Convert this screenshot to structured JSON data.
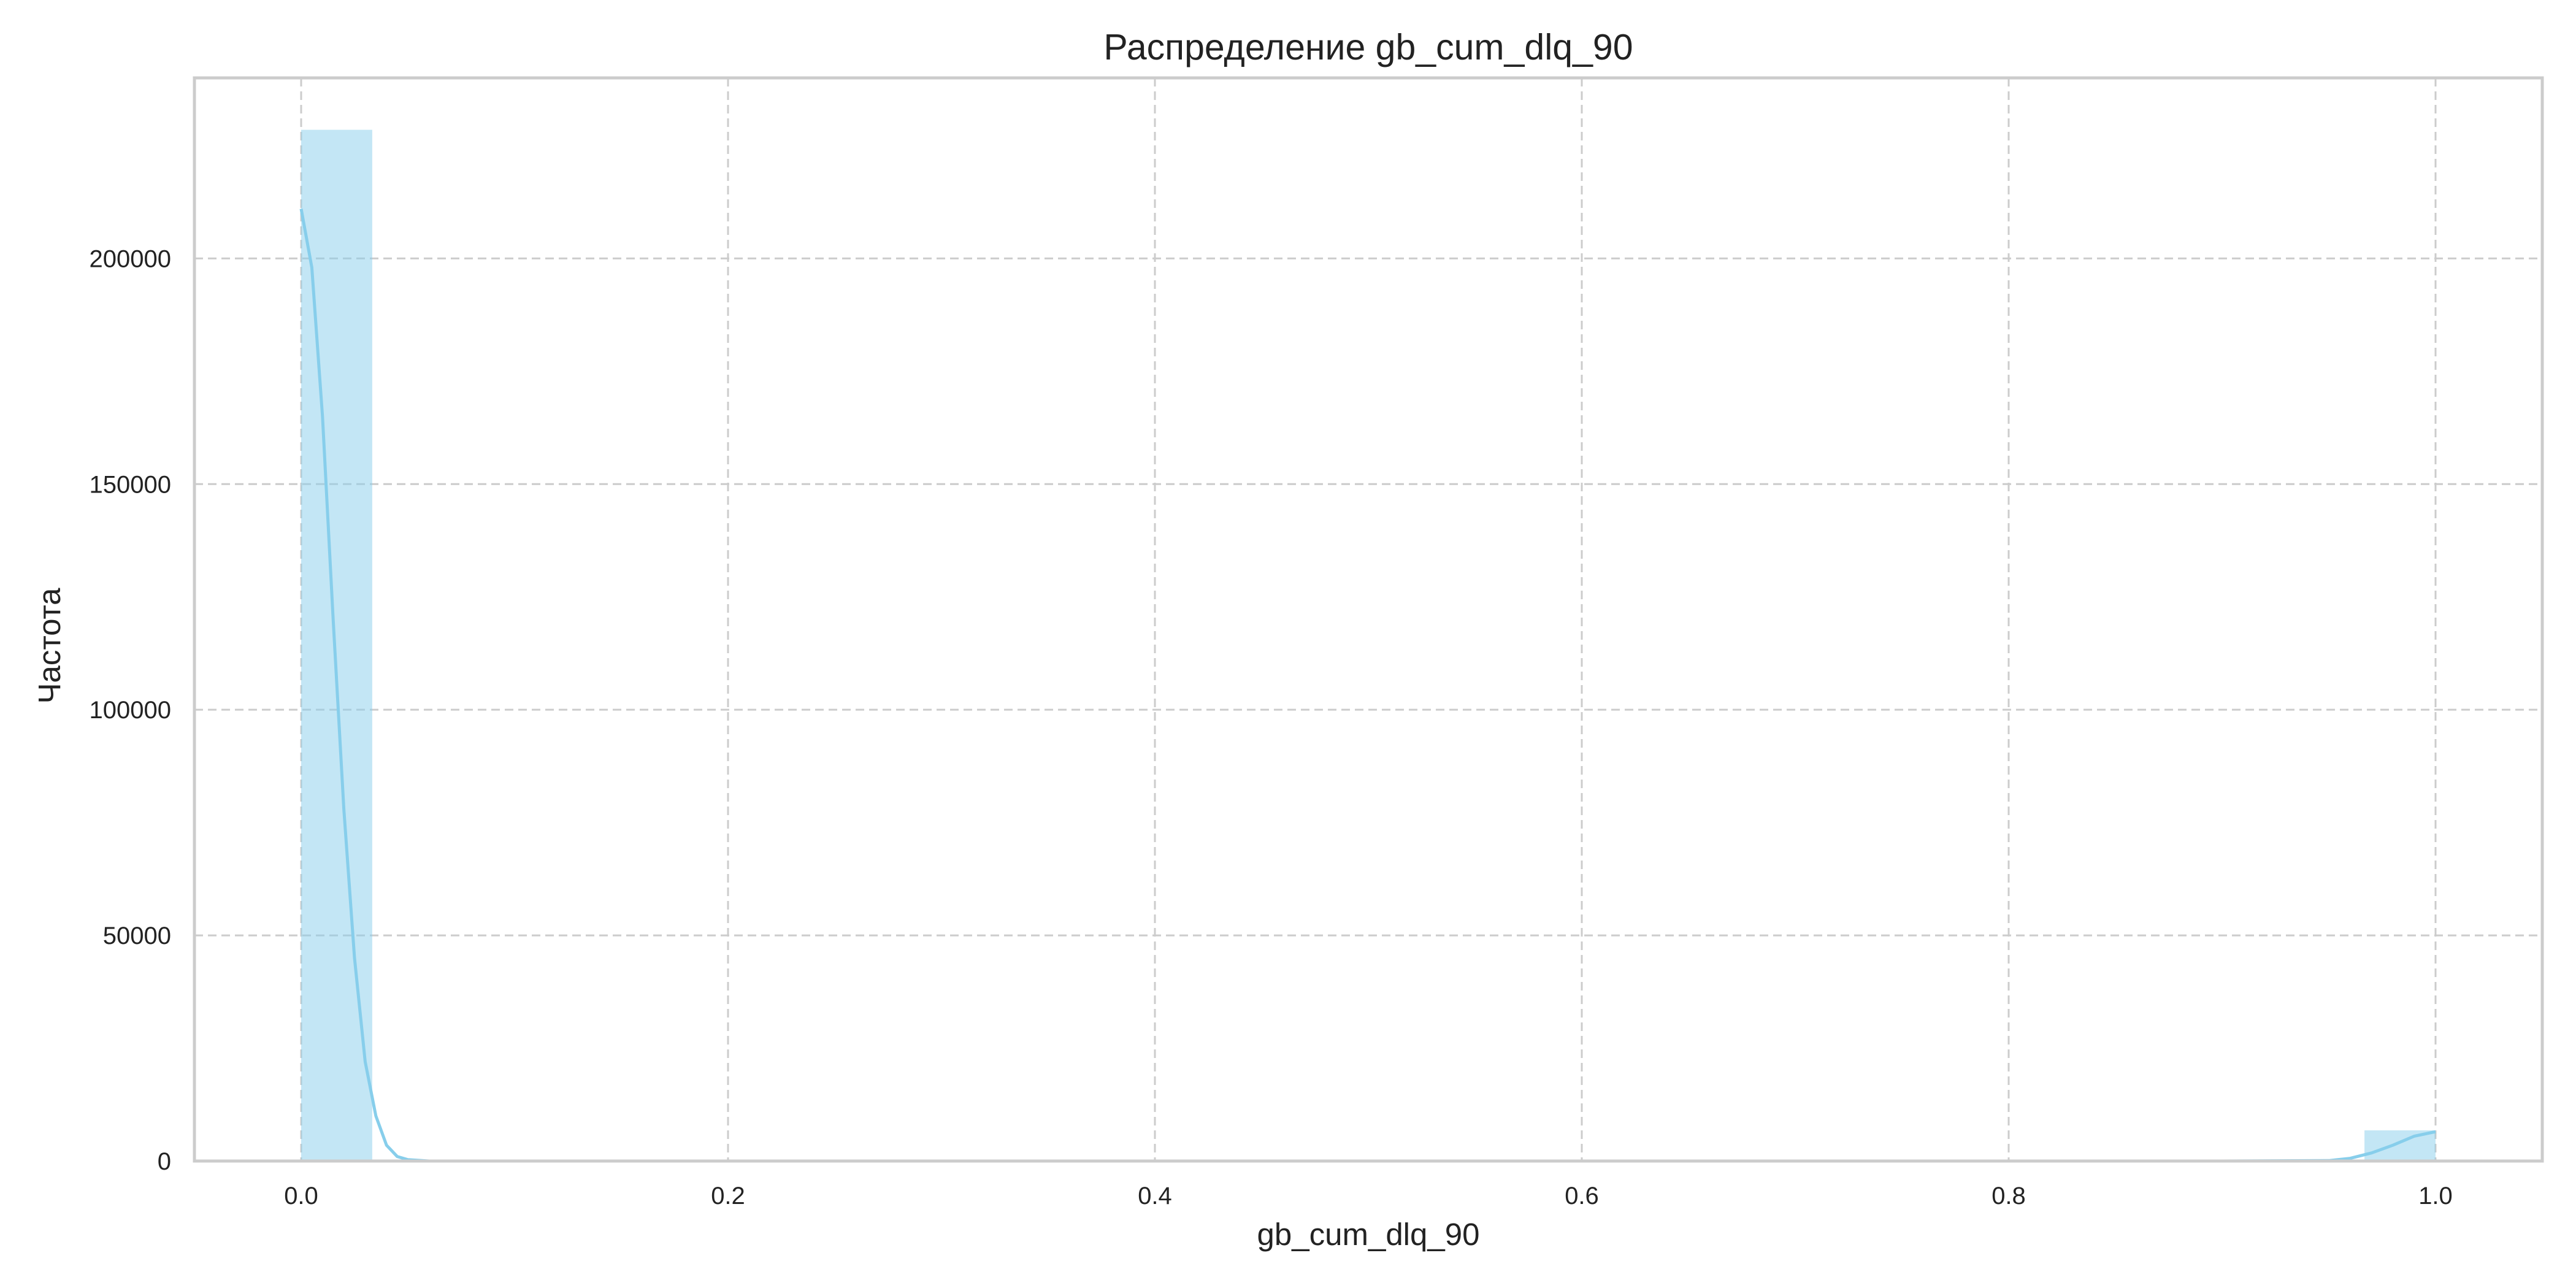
{
  "chart_data": {
    "type": "bar",
    "title": "Распределение gb_cum_dlq_90",
    "xlabel": "gb_cum_dlq_90",
    "ylabel": "Частота",
    "xlim": [
      -0.05,
      1.05
    ],
    "ylim": [
      0,
      240000
    ],
    "xticks": [
      0.0,
      0.2,
      0.4,
      0.6,
      0.8,
      1.0
    ],
    "xtick_labels": [
      "0.0",
      "0.2",
      "0.4",
      "0.6",
      "0.8",
      "1.0"
    ],
    "yticks": [
      0,
      50000,
      100000,
      150000,
      200000
    ],
    "ytick_labels": [
      "0",
      "50000",
      "100000",
      "150000",
      "200000"
    ],
    "grid": true,
    "legend": "none",
    "bars": [
      {
        "x0": 0.0,
        "x1": 0.0333,
        "value": 228500
      },
      {
        "x0": 0.9667,
        "x1": 1.0,
        "value": 6800
      }
    ],
    "kde_line": {
      "x": [
        0.0,
        0.005,
        0.01,
        0.015,
        0.02,
        0.025,
        0.03,
        0.035,
        0.04,
        0.045,
        0.05,
        0.06,
        0.08,
        0.1,
        0.3,
        0.5,
        0.7,
        0.9,
        0.95,
        0.96,
        0.97,
        0.98,
        0.99,
        1.0
      ],
      "y": [
        211000,
        198000,
        165000,
        120000,
        78000,
        45000,
        22000,
        10000,
        3500,
        1000,
        300,
        0,
        0,
        0,
        0,
        0,
        0,
        0,
        100,
        600,
        1800,
        3500,
        5500,
        6500
      ]
    },
    "colors": {
      "bar_fill": "#87ceeb",
      "kde_line": "#87ceeb",
      "grid": "#cccccc",
      "frame": "#cccccc",
      "text": "#222222"
    }
  }
}
